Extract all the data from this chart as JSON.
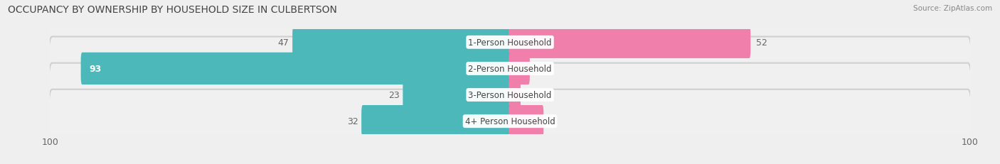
{
  "title": "OCCUPANCY BY OWNERSHIP BY HOUSEHOLD SIZE IN CULBERTSON",
  "source": "Source: ZipAtlas.com",
  "categories": [
    "1-Person Household",
    "2-Person Household",
    "3-Person Household",
    "4+ Person Household"
  ],
  "owner_values": [
    47,
    93,
    23,
    32
  ],
  "renter_values": [
    52,
    4,
    2,
    7
  ],
  "max_value": 100,
  "owner_color": "#4db8ba",
  "owner_color_dark": "#2a9ea0",
  "renter_color": "#f07fab",
  "renter_color_light": "#f9b8ce",
  "label_color": "#666666",
  "bg_color": "#efefef",
  "row_bg_color": "#e2e2e2",
  "row_inner_color": "#f5f5f5",
  "center_label_bg": "#ffffff",
  "title_fontsize": 10,
  "bar_label_fontsize": 9,
  "legend_fontsize": 9,
  "axis_label_fontsize": 9
}
